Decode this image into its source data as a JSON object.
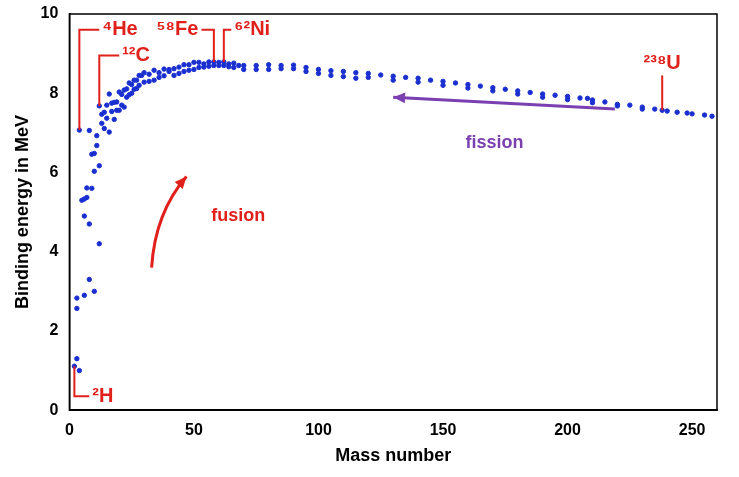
{
  "chart_data": {
    "type": "scatter",
    "x_label": "Mass number",
    "y_label": "Binding energy in MeV",
    "x": [
      2,
      3,
      3,
      3,
      4,
      4,
      5,
      6,
      6,
      6,
      7,
      7,
      8,
      8,
      8,
      9,
      9,
      10,
      10,
      10,
      11,
      11,
      12,
      12,
      12,
      13,
      13,
      14,
      14,
      15,
      15,
      16,
      16,
      17,
      17,
      18,
      18,
      19,
      19,
      20,
      20,
      21,
      21,
      22,
      22,
      23,
      23,
      24,
      24,
      25,
      25,
      26,
      26,
      27,
      27,
      28,
      28,
      29,
      30,
      30,
      32,
      32,
      34,
      34,
      36,
      36,
      38,
      38,
      40,
      40,
      42,
      42,
      44,
      44,
      46,
      46,
      48,
      48,
      50,
      50,
      52,
      52,
      54,
      54,
      56,
      56,
      58,
      58,
      60,
      60,
      62,
      62,
      64,
      64,
      66,
      66,
      68,
      70,
      70,
      75,
      75,
      80,
      80,
      85,
      85,
      90,
      90,
      95,
      95,
      100,
      100,
      105,
      105,
      110,
      110,
      115,
      115,
      120,
      120,
      125,
      130,
      130,
      135,
      140,
      140,
      145,
      150,
      150,
      155,
      160,
      160,
      165,
      170,
      170,
      175,
      180,
      180,
      185,
      190,
      190,
      195,
      200,
      200,
      205,
      208,
      210,
      210,
      215,
      220,
      220,
      225,
      230,
      230,
      235,
      238,
      240,
      244,
      248,
      250,
      255,
      258
    ],
    "values": [
      1.11,
      2.57,
      2.83,
      1.3,
      7.07,
      1.0,
      5.3,
      5.33,
      4.9,
      2.9,
      5.61,
      5.37,
      7.06,
      4.7,
      3.3,
      6.46,
      5.6,
      6.48,
      6.03,
      3.0,
      6.93,
      6.68,
      7.68,
      6.17,
      4.2,
      7.47,
      7.24,
      7.52,
      7.11,
      7.7,
      7.37,
      7.98,
      7.02,
      7.75,
      7.54,
      7.77,
      7.34,
      7.78,
      7.57,
      8.03,
      7.57,
      7.97,
      7.7,
      8.08,
      7.65,
      8.11,
      7.9,
      8.26,
      7.96,
      8.22,
      8.0,
      8.33,
      8.1,
      8.33,
      8.12,
      8.45,
      8.2,
      8.45,
      8.52,
      8.28,
      8.48,
      8.3,
      8.58,
      8.33,
      8.52,
      8.4,
      8.61,
      8.44,
      8.55,
      8.6,
      8.62,
      8.45,
      8.66,
      8.5,
      8.72,
      8.55,
      8.72,
      8.58,
      8.78,
      8.6,
      8.78,
      8.65,
      8.74,
      8.66,
      8.79,
      8.68,
      8.79,
      8.7,
      8.78,
      8.7,
      8.79,
      8.7,
      8.74,
      8.67,
      8.76,
      8.65,
      8.7,
      8.7,
      8.6,
      8.7,
      8.6,
      8.72,
      8.6,
      8.7,
      8.62,
      8.71,
      8.62,
      8.65,
      8.55,
      8.6,
      8.5,
      8.57,
      8.45,
      8.55,
      8.42,
      8.52,
      8.38,
      8.5,
      8.4,
      8.46,
      8.43,
      8.33,
      8.4,
      8.38,
      8.28,
      8.33,
      8.3,
      8.2,
      8.26,
      8.22,
      8.13,
      8.18,
      8.14,
      8.06,
      8.1,
      8.06,
      7.98,
      8.02,
      7.98,
      7.9,
      7.95,
      7.92,
      7.84,
      7.88,
      7.87,
      7.83,
      7.76,
      7.78,
      7.72,
      7.68,
      7.7,
      7.65,
      7.6,
      7.6,
      7.57,
      7.55,
      7.52,
      7.5,
      7.48,
      7.45,
      7.42
    ],
    "color": "#1a2fd0",
    "marker": "circle",
    "xlim": [
      0,
      260
    ],
    "ylim": [
      0,
      10
    ],
    "xticks": [
      0,
      50,
      100,
      150,
      200,
      250
    ],
    "yticks": [
      0,
      2,
      4,
      6,
      8,
      10
    ],
    "grid": false,
    "annotations": [
      {
        "text": "⁴He",
        "x": 4,
        "y": 7.07,
        "text_x": 12,
        "text_y": 9.6,
        "color": "#e0201b"
      },
      {
        "text": "¹²C",
        "x": 12,
        "y": 7.68,
        "text_x": 20,
        "text_y": 8.95,
        "color": "#e0201b"
      },
      {
        "text": "⁵⁸Fe",
        "x": 58,
        "y": 8.79,
        "text_x": 53,
        "text_y": 9.6,
        "color": "#e0201b"
      },
      {
        "text": "⁶²Ni",
        "x": 62,
        "y": 8.79,
        "text_x": 65,
        "text_y": 9.6,
        "color": "#e0201b"
      },
      {
        "text": "²³⁸U",
        "x": 238,
        "y": 7.57,
        "text_x": 238,
        "text_y": 8.45,
        "color": "#e0201b"
      },
      {
        "text": "²H",
        "x": 2,
        "y": 1.11,
        "text_x": 8,
        "text_y": 0.35,
        "color": "#e0201b"
      }
    ],
    "arrows": [
      {
        "text": "fusion",
        "from": [
          33,
          3.6
        ],
        "to": [
          47,
          5.9
        ],
        "text_x": 57,
        "text_y": 4.9,
        "color": "#e0201b"
      },
      {
        "text": "fission",
        "from": [
          219,
          7.6
        ],
        "to": [
          130,
          7.9
        ],
        "text_x": 159,
        "text_y": 6.75,
        "color": "#7a3fb0"
      }
    ]
  }
}
